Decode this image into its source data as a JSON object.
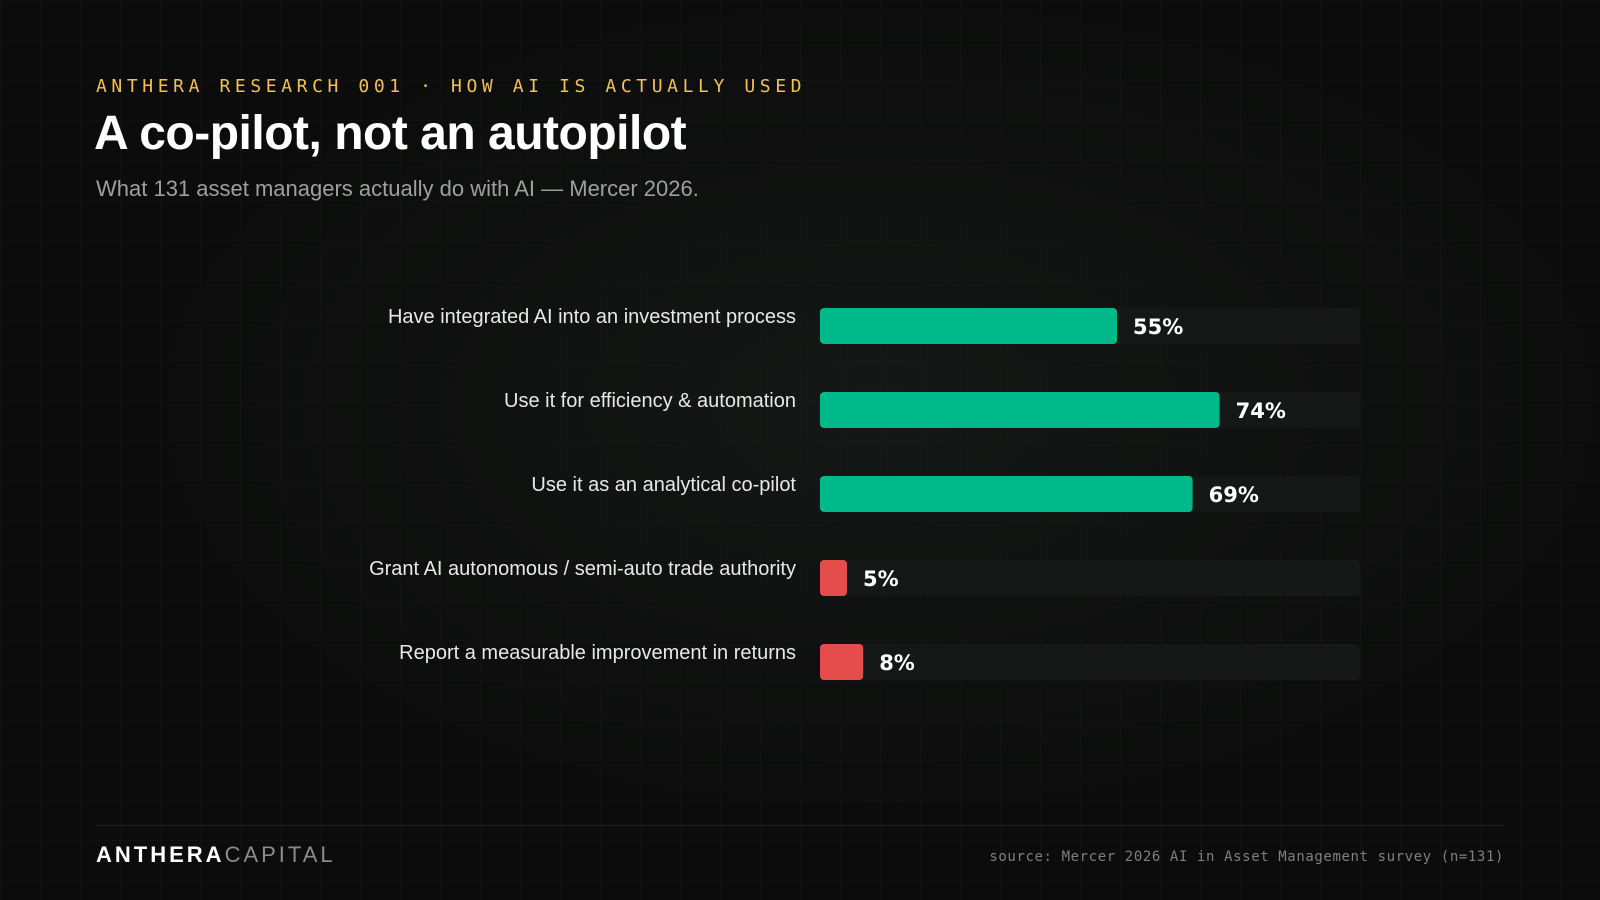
{
  "header": {
    "eyebrow": "ANTHERA RESEARCH 001 · HOW AI IS ACTUALLY USED",
    "title": "A co-pilot, not an autopilot",
    "subtitle": "What 131 asset managers actually do with AI — Mercer 2026."
  },
  "chart_data": {
    "type": "bar",
    "orientation": "horizontal",
    "title": "A co-pilot, not an autopilot",
    "subtitle": "What 131 asset managers actually do with AI — Mercer 2026.",
    "categories": [
      "Have integrated AI into an investment process",
      "Use it for efficiency & automation",
      "Use it as an analytical co-pilot",
      "Grant AI autonomous / semi-auto trade authority",
      "Report a measurable improvement in returns"
    ],
    "values": [
      55,
      74,
      69,
      5,
      8
    ],
    "value_labels": [
      "55%",
      "74%",
      "69%",
      "5%",
      "8%"
    ],
    "bar_colors": [
      "#00b98b",
      "#00b98b",
      "#00b98b",
      "#e54d4d",
      "#e54d4d"
    ],
    "xlim": [
      0,
      100
    ],
    "unit": "%",
    "grid": false,
    "legend": "none",
    "track_color": "#161817"
  },
  "footer": {
    "brand_strong": "ANTHERA",
    "brand_light": "CAPITAL",
    "source": "source: Mercer 2026 AI in Asset Management survey (n=131)"
  },
  "colors": {
    "accent": "#f2c14e",
    "positive": "#00b98b",
    "negative": "#e54d4d",
    "background": "#0b0c0b"
  }
}
